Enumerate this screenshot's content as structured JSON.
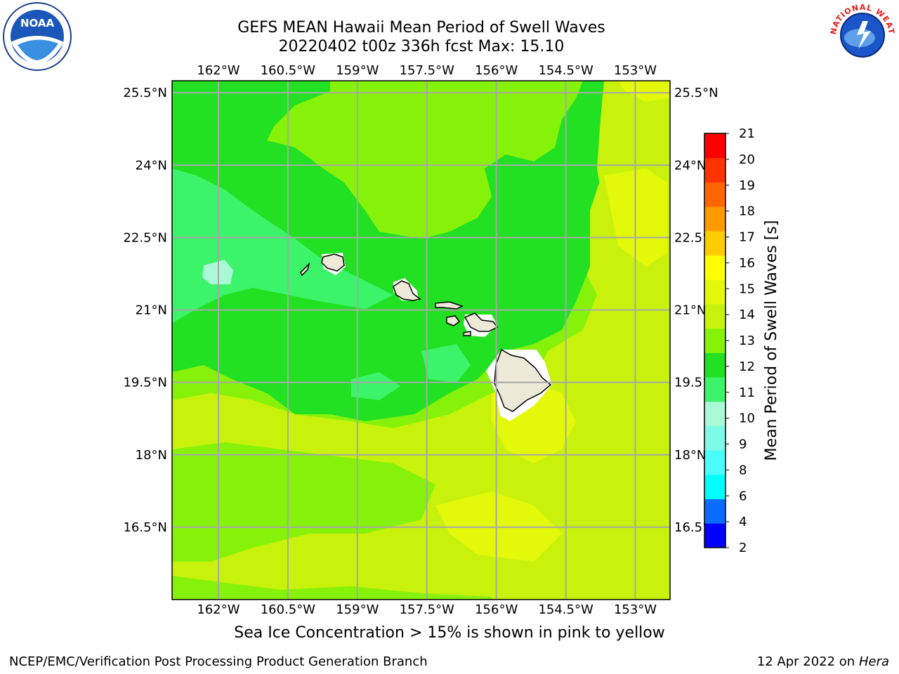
{
  "title": {
    "line1": "GEFS MEAN Hawaii Mean Period of Swell Waves",
    "line2": "20220402 t00z 336h fcst   Max: 15.10"
  },
  "map": {
    "lon_ticks": [
      "162°W",
      "160.5°W",
      "159°W",
      "157.5°W",
      "156°W",
      "154.5°W",
      "153°W"
    ],
    "lat_ticks": [
      "25.5°N",
      "24°N",
      "22.5°N",
      "21°N",
      "19.5°N",
      "18°N",
      "16.5°N"
    ],
    "lon_values": [
      -162,
      -160.5,
      -159,
      -157.5,
      -156,
      -154.5,
      -153
    ],
    "lat_values": [
      25.5,
      24,
      22.5,
      21,
      19.5,
      18,
      16.5
    ],
    "lon_range": [
      -163,
      -152.25
    ],
    "lat_range": [
      15,
      25.75
    ],
    "grid": true,
    "ocean_colors": {
      "10-11": "#3cf46a",
      "11-12": "#22e022",
      "12-13": "#86f20a",
      "13-14": "#c8f20c",
      "14-15": "#e4f80a"
    },
    "land_color": "#ece9d8"
  },
  "colorbar": {
    "label": "Mean Period of Swell Waves [s]",
    "ticks": [
      "2",
      "4",
      "6",
      "8",
      "9",
      "10",
      "11",
      "12",
      "13",
      "14",
      "15",
      "16",
      "17",
      "18",
      "19",
      "20",
      "21"
    ],
    "colors": [
      "#0000ff",
      "#0a6cff",
      "#00ffff",
      "#4bfcfc",
      "#7dfae8",
      "#a9f8d6",
      "#3cf46a",
      "#22e022",
      "#86f20a",
      "#c8f20c",
      "#e4f80a",
      "#ffff00",
      "#ffcc00",
      "#ff9900",
      "#ff6600",
      "#ff3300",
      "#ff0000"
    ]
  },
  "logos": {
    "noaa_text": "NOAA",
    "nws_text": "NATIONAL WEATHER SERVICE"
  },
  "footer": {
    "ice_note": "Sea Ice Concentration > 15% is shown in pink to yellow",
    "credit": "NCEP/EMC/Verification Post Processing Product Generation Branch",
    "date": "12 Apr 2022 on",
    "machine": "Hera"
  }
}
